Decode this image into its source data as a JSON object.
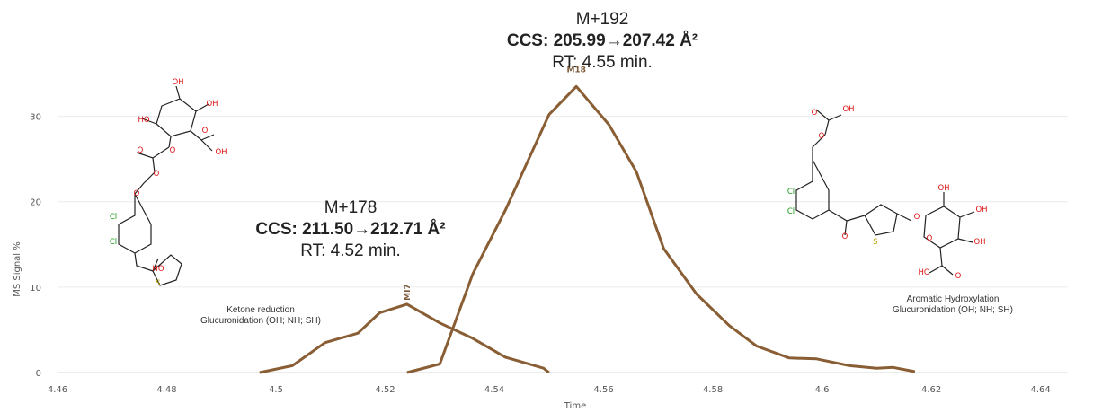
{
  "chart_data": {
    "type": "line",
    "xlabel": "Time",
    "ylabel": "MS Signal %",
    "xlim": [
      4.46,
      4.645
    ],
    "ylim": [
      0,
      35
    ],
    "x_ticks": [
      "4.46",
      "4.48",
      "4.5",
      "4.52",
      "4.54",
      "4.56",
      "4.58",
      "4.6",
      "4.62",
      "4.64"
    ],
    "y_ticks": [
      "0",
      "10",
      "20",
      "30"
    ],
    "grid": "horizontal",
    "line_color": "#8a5e34",
    "series": [
      {
        "name": "MI7",
        "x": [
          4.497,
          4.503,
          4.509,
          4.515,
          4.519,
          4.524,
          4.53,
          4.536,
          4.542,
          4.549,
          4.55
        ],
        "y": [
          0,
          0.8,
          3.5,
          4.6,
          7.0,
          8.0,
          5.8,
          4.0,
          1.8,
          0.5,
          0
        ]
      },
      {
        "name": "M18",
        "x": [
          4.524,
          4.53,
          4.536,
          4.542,
          4.55,
          4.555,
          4.561,
          4.566,
          4.571,
          4.577,
          4.583,
          4.588,
          4.594,
          4.599,
          4.605,
          4.61,
          4.613,
          4.617
        ],
        "y": [
          0,
          1.0,
          11.5,
          19.0,
          30.2,
          33.5,
          29.0,
          23.5,
          14.5,
          9.2,
          5.5,
          3.1,
          1.7,
          1.6,
          0.8,
          0.5,
          0.6,
          0.1
        ]
      }
    ],
    "peak_labels": [
      {
        "text": "MI7",
        "x": 4.524,
        "y": 8.0
      },
      {
        "text": "M18",
        "x": 4.555,
        "y": 33.5
      }
    ],
    "annotations": {
      "top": {
        "line1": "M+192",
        "line2": "CCS: 205.99→207.42 Å²",
        "line3": "RT: 4.55 min."
      },
      "left": {
        "line1": "M+178",
        "line2": "CCS: 211.50→212.71 Å²",
        "line3": "RT: 4.52 min."
      },
      "left_small": {
        "line1": "Ketone reduction",
        "line2": "Glucuronidation (OH; NH; SH)"
      },
      "right_small": {
        "line1": "Aromatic Hydroxylation",
        "line2": "Glucuronidation (OH; NH; SH)"
      }
    },
    "structure_labels": {
      "left": [
        "OH",
        "HO",
        "OH",
        "O",
        "OH",
        "O",
        "O",
        "O",
        "O",
        "Cl",
        "Cl",
        "HO",
        "S"
      ],
      "right": [
        "O",
        "OH",
        "O",
        "Cl",
        "Cl",
        "O",
        "O",
        "OH",
        "OH",
        "OH",
        "S",
        "O",
        "HO",
        "O"
      ]
    }
  }
}
